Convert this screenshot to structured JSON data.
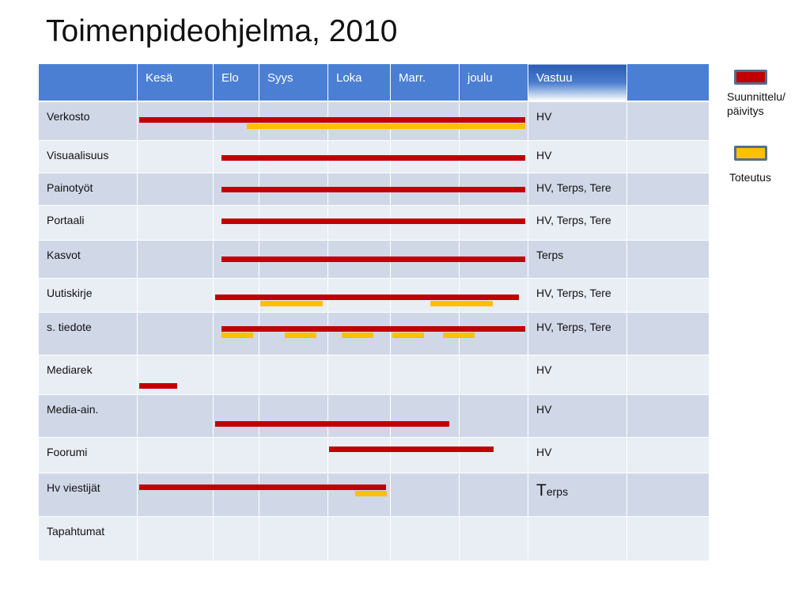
{
  "title": "Toimenpideohjelma, 2010",
  "columns": [
    "",
    "Kesä",
    "Elo",
    "Syys",
    "Loka",
    "Marr.",
    "joulu",
    "Vastuu",
    ""
  ],
  "rows": [
    {
      "task": "Verkosto",
      "responsible": "HV"
    },
    {
      "task": "Visuaalisuus",
      "responsible": "HV"
    },
    {
      "task": "Painotyöt",
      "responsible": "HV, Terps, Tere"
    },
    {
      "task": "Portaali",
      "responsible": "HV, Terps, Tere"
    },
    {
      "task": "Kasvot",
      "responsible": "Terps"
    },
    {
      "task": "Uutiskirje",
      "responsible": "HV, Terps, Tere"
    },
    {
      "task": "s. tiedote",
      "responsible": "HV, Terps, Tere"
    },
    {
      "task": "Mediarek",
      "responsible": "HV"
    },
    {
      "task": "Media-ain.",
      "responsible": "HV"
    },
    {
      "task": "Foorumi",
      "responsible": "HV"
    },
    {
      "task": "Hv viestijät",
      "responsible_big": "T",
      "responsible": "erps"
    },
    {
      "task": "Tapahtumat",
      "responsible": ""
    }
  ],
  "legend": {
    "planning": {
      "label_1": "Suunnittelu/",
      "label_2": "päivitys",
      "color": "#c00000"
    },
    "execution": {
      "label": "Toteutus",
      "color": "#ffc000"
    }
  }
}
